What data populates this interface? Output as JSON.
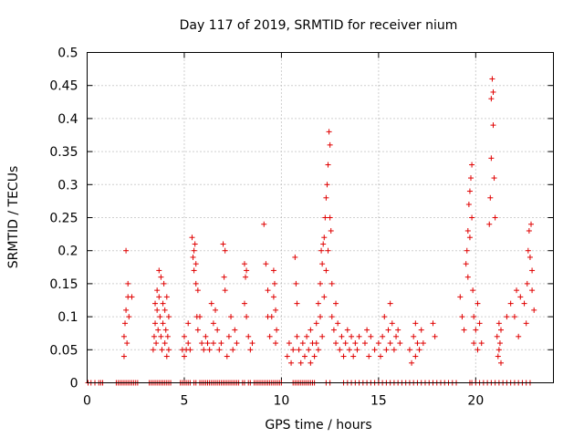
{
  "chart_data": {
    "type": "scatter",
    "title": "Day 117 of 2019, SRMTID for receiver nium",
    "xlabel": "GPS time / hours",
    "ylabel": "SRMTID / TECUs",
    "xlim": [
      0,
      24
    ],
    "ylim": [
      0,
      0.5
    ],
    "xticks": [
      0,
      5,
      10,
      15,
      20
    ],
    "yticks": [
      0,
      0.05,
      0.1,
      0.15,
      0.2,
      0.25,
      0.3,
      0.35,
      0.4,
      0.45,
      0.5
    ],
    "xtick_labels": [
      "0",
      "5",
      "10",
      "15",
      "20"
    ],
    "ytick_labels": [
      "0",
      "0.05",
      "0.1",
      "0.15",
      "0.2",
      "0.25",
      "0.3",
      "0.35",
      "0.4",
      "0.45",
      "0.5"
    ],
    "grid": true,
    "marker": "+",
    "color": "#e00000",
    "series": [
      {
        "name": "SRMTID",
        "points": [
          [
            1.9,
            0.04
          ],
          [
            1.9,
            0.07
          ],
          [
            1.95,
            0.09
          ],
          [
            2.0,
            0.2
          ],
          [
            2.0,
            0.11
          ],
          [
            2.05,
            0.06
          ],
          [
            2.1,
            0.15
          ],
          [
            2.1,
            0.13
          ],
          [
            2.15,
            0.1
          ],
          [
            2.3,
            0.13
          ],
          [
            3.4,
            0.05
          ],
          [
            3.45,
            0.07
          ],
          [
            3.5,
            0.12
          ],
          [
            3.5,
            0.09
          ],
          [
            3.55,
            0.06
          ],
          [
            3.6,
            0.14
          ],
          [
            3.6,
            0.11
          ],
          [
            3.65,
            0.08
          ],
          [
            3.7,
            0.17
          ],
          [
            3.7,
            0.13
          ],
          [
            3.75,
            0.1
          ],
          [
            3.8,
            0.07
          ],
          [
            3.8,
            0.16
          ],
          [
            3.85,
            0.05
          ],
          [
            3.9,
            0.12
          ],
          [
            3.9,
            0.09
          ],
          [
            3.95,
            0.15
          ],
          [
            4.0,
            0.06
          ],
          [
            4.0,
            0.11
          ],
          [
            4.05,
            0.08
          ],
          [
            4.1,
            0.04
          ],
          [
            4.1,
            0.13
          ],
          [
            4.15,
            0.07
          ],
          [
            4.2,
            0.05
          ],
          [
            4.2,
            0.1
          ],
          [
            4.9,
            0.05
          ],
          [
            5.0,
            0.04
          ],
          [
            5.0,
            0.07
          ],
          [
            5.1,
            0.05
          ],
          [
            5.2,
            0.06
          ],
          [
            5.2,
            0.09
          ],
          [
            5.3,
            0.05
          ],
          [
            5.4,
            0.22
          ],
          [
            5.45,
            0.19
          ],
          [
            5.5,
            0.2
          ],
          [
            5.5,
            0.17
          ],
          [
            5.55,
            0.21
          ],
          [
            5.6,
            0.18
          ],
          [
            5.6,
            0.15
          ],
          [
            5.65,
            0.1
          ],
          [
            5.7,
            0.14
          ],
          [
            5.7,
            0.08
          ],
          [
            5.8,
            0.1
          ],
          [
            5.9,
            0.06
          ],
          [
            6.0,
            0.05
          ],
          [
            6.1,
            0.07
          ],
          [
            6.2,
            0.06
          ],
          [
            6.3,
            0.05
          ],
          [
            6.4,
            0.12
          ],
          [
            6.5,
            0.09
          ],
          [
            6.5,
            0.06
          ],
          [
            6.6,
            0.11
          ],
          [
            6.7,
            0.08
          ],
          [
            6.8,
            0.05
          ],
          [
            6.9,
            0.06
          ],
          [
            7.0,
            0.21
          ],
          [
            7.05,
            0.16
          ],
          [
            7.1,
            0.2
          ],
          [
            7.1,
            0.14
          ],
          [
            7.2,
            0.04
          ],
          [
            7.3,
            0.07
          ],
          [
            7.4,
            0.1
          ],
          [
            7.5,
            0.05
          ],
          [
            7.6,
            0.08
          ],
          [
            7.7,
            0.06
          ],
          [
            8.1,
            0.18
          ],
          [
            8.1,
            0.12
          ],
          [
            8.15,
            0.16
          ],
          [
            8.2,
            0.1
          ],
          [
            8.2,
            0.17
          ],
          [
            8.3,
            0.07
          ],
          [
            8.4,
            0.05
          ],
          [
            8.5,
            0.06
          ],
          [
            9.1,
            0.24
          ],
          [
            9.2,
            0.18
          ],
          [
            9.3,
            0.14
          ],
          [
            9.3,
            0.1
          ],
          [
            9.4,
            0.07
          ],
          [
            9.5,
            0.1
          ],
          [
            9.6,
            0.17
          ],
          [
            9.6,
            0.13
          ],
          [
            9.65,
            0.15
          ],
          [
            9.7,
            0.11
          ],
          [
            9.7,
            0.06
          ],
          [
            9.75,
            0.08
          ],
          [
            10.3,
            0.04
          ],
          [
            10.4,
            0.06
          ],
          [
            10.5,
            0.03
          ],
          [
            10.6,
            0.05
          ],
          [
            10.7,
            0.19
          ],
          [
            10.75,
            0.15
          ],
          [
            10.8,
            0.12
          ],
          [
            10.8,
            0.07
          ],
          [
            10.9,
            0.05
          ],
          [
            11.0,
            0.03
          ],
          [
            11.1,
            0.06
          ],
          [
            11.2,
            0.04
          ],
          [
            11.3,
            0.07
          ],
          [
            11.4,
            0.05
          ],
          [
            11.5,
            0.08
          ],
          [
            11.5,
            0.03
          ],
          [
            11.6,
            0.06
          ],
          [
            11.7,
            0.04
          ],
          [
            11.8,
            0.09
          ],
          [
            11.8,
            0.06
          ],
          [
            11.9,
            0.12
          ],
          [
            11.9,
            0.05
          ],
          [
            12.0,
            0.15
          ],
          [
            12.0,
            0.1
          ],
          [
            12.05,
            0.2
          ],
          [
            12.1,
            0.18
          ],
          [
            12.1,
            0.07
          ],
          [
            12.15,
            0.21
          ],
          [
            12.2,
            0.22
          ],
          [
            12.2,
            0.13
          ],
          [
            12.25,
            0.25
          ],
          [
            12.3,
            0.28
          ],
          [
            12.3,
            0.17
          ],
          [
            12.35,
            0.3
          ],
          [
            12.4,
            0.33
          ],
          [
            12.4,
            0.2
          ],
          [
            12.45,
            0.38
          ],
          [
            12.5,
            0.36
          ],
          [
            12.5,
            0.25
          ],
          [
            12.55,
            0.23
          ],
          [
            12.6,
            0.15
          ],
          [
            12.6,
            0.1
          ],
          [
            12.7,
            0.08
          ],
          [
            12.8,
            0.12
          ],
          [
            12.8,
            0.06
          ],
          [
            12.9,
            0.09
          ],
          [
            13.0,
            0.05
          ],
          [
            13.1,
            0.07
          ],
          [
            13.2,
            0.04
          ],
          [
            13.3,
            0.06
          ],
          [
            13.4,
            0.08
          ],
          [
            13.5,
            0.05
          ],
          [
            13.6,
            0.07
          ],
          [
            13.7,
            0.04
          ],
          [
            13.8,
            0.06
          ],
          [
            13.9,
            0.05
          ],
          [
            14.0,
            0.07
          ],
          [
            14.3,
            0.06
          ],
          [
            14.4,
            0.08
          ],
          [
            14.5,
            0.04
          ],
          [
            14.6,
            0.07
          ],
          [
            14.8,
            0.05
          ],
          [
            15.0,
            0.06
          ],
          [
            15.1,
            0.04
          ],
          [
            15.2,
            0.07
          ],
          [
            15.3,
            0.1
          ],
          [
            15.4,
            0.05
          ],
          [
            15.5,
            0.08
          ],
          [
            15.6,
            0.12
          ],
          [
            15.6,
            0.06
          ],
          [
            15.7,
            0.09
          ],
          [
            15.8,
            0.05
          ],
          [
            15.9,
            0.07
          ],
          [
            16.0,
            0.08
          ],
          [
            16.1,
            0.06
          ],
          [
            16.6,
            0.05
          ],
          [
            16.7,
            0.03
          ],
          [
            16.8,
            0.07
          ],
          [
            16.9,
            0.04
          ],
          [
            16.9,
            0.09
          ],
          [
            17.0,
            0.06
          ],
          [
            17.1,
            0.05
          ],
          [
            17.2,
            0.08
          ],
          [
            17.3,
            0.06
          ],
          [
            17.8,
            0.09
          ],
          [
            17.9,
            0.07
          ],
          [
            19.2,
            0.13
          ],
          [
            19.3,
            0.1
          ],
          [
            19.4,
            0.08
          ],
          [
            19.5,
            0.18
          ],
          [
            19.55,
            0.2
          ],
          [
            19.6,
            0.23
          ],
          [
            19.6,
            0.16
          ],
          [
            19.65,
            0.27
          ],
          [
            19.7,
            0.29
          ],
          [
            19.7,
            0.22
          ],
          [
            19.75,
            0.31
          ],
          [
            19.8,
            0.33
          ],
          [
            19.8,
            0.25
          ],
          [
            19.85,
            0.14
          ],
          [
            19.9,
            0.1
          ],
          [
            19.9,
            0.06
          ],
          [
            20.0,
            0.08
          ],
          [
            20.1,
            0.12
          ],
          [
            20.1,
            0.05
          ],
          [
            20.2,
            0.09
          ],
          [
            20.3,
            0.06
          ],
          [
            20.7,
            0.24
          ],
          [
            20.75,
            0.28
          ],
          [
            20.8,
            0.34
          ],
          [
            20.8,
            0.43
          ],
          [
            20.85,
            0.46
          ],
          [
            20.9,
            0.44
          ],
          [
            20.9,
            0.39
          ],
          [
            20.95,
            0.31
          ],
          [
            21.0,
            0.25
          ],
          [
            21.1,
            0.07
          ],
          [
            21.15,
            0.04
          ],
          [
            21.2,
            0.09
          ],
          [
            21.2,
            0.05
          ],
          [
            21.25,
            0.06
          ],
          [
            21.3,
            0.08
          ],
          [
            21.3,
            0.03
          ],
          [
            21.6,
            0.1
          ],
          [
            21.8,
            0.12
          ],
          [
            22.0,
            0.1
          ],
          [
            22.1,
            0.14
          ],
          [
            22.2,
            0.07
          ],
          [
            22.3,
            0.13
          ],
          [
            22.5,
            0.12
          ],
          [
            22.6,
            0.09
          ],
          [
            22.65,
            0.15
          ],
          [
            22.7,
            0.2
          ],
          [
            22.75,
            0.23
          ],
          [
            22.8,
            0.19
          ],
          [
            22.85,
            0.24
          ],
          [
            22.9,
            0.17
          ],
          [
            22.9,
            0.14
          ],
          [
            23.0,
            0.11
          ]
        ],
        "zeros": [
          0.05,
          0.2,
          0.4,
          0.6,
          0.7,
          0.8,
          1.5,
          1.6,
          1.7,
          1.8,
          1.9,
          2.0,
          2.1,
          2.2,
          2.3,
          2.4,
          2.5,
          2.6,
          3.2,
          3.3,
          3.4,
          3.5,
          3.6,
          3.7,
          3.8,
          3.9,
          4.0,
          4.1,
          4.2,
          4.3,
          4.8,
          4.9,
          5.0,
          5.1,
          5.2,
          5.3,
          5.5,
          5.6,
          5.8,
          5.9,
          6.0,
          6.1,
          6.2,
          6.3,
          6.4,
          6.5,
          6.6,
          6.7,
          6.8,
          6.9,
          7.0,
          7.1,
          7.2,
          7.3,
          7.4,
          7.5,
          7.6,
          7.7,
          7.8,
          8.0,
          8.1,
          8.3,
          8.4,
          8.6,
          8.7,
          8.8,
          8.9,
          9.0,
          9.1,
          9.2,
          9.3,
          9.4,
          9.5,
          9.6,
          9.7,
          9.8,
          9.9,
          10.0,
          10.6,
          10.7,
          10.8,
          10.9,
          11.0,
          11.1,
          11.2,
          11.3,
          11.4,
          11.5,
          11.6,
          11.7,
          12.3,
          12.5,
          13.2,
          13.4,
          13.6,
          13.8,
          14.0,
          14.2,
          14.4,
          14.6,
          14.8,
          15.0,
          15.2,
          15.4,
          15.6,
          15.8,
          16.0,
          16.2,
          16.4,
          16.6,
          16.8,
          17.0,
          17.2,
          17.4,
          17.6,
          17.8,
          18.0,
          18.2,
          18.4,
          18.6,
          18.8,
          19.0,
          19.7,
          19.8,
          20.0,
          20.2,
          20.4,
          20.6,
          20.8,
          21.0,
          21.2,
          21.4,
          21.6,
          21.8,
          22.0,
          22.2,
          22.4,
          22.6,
          22.8
        ]
      }
    ]
  }
}
